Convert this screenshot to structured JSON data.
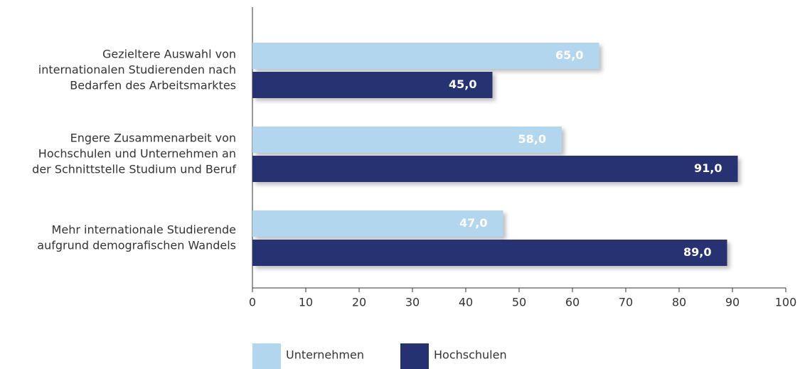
{
  "chart_data": {
    "type": "barh",
    "categories": [
      [
        "Gezieltere Auswahl von",
        "internationalen Studierenden nach",
        "Bedarfen des Arbeitsmarktes"
      ],
      [
        "Engere Zusammenarbeit von",
        "Hochschulen und Unternehmen an",
        "der Schnittstelle Studium und Beruf"
      ],
      [
        "Mehr internationale Studierende",
        "aufgrund demografischen Wandels"
      ]
    ],
    "series": [
      {
        "name": "Unternehmen",
        "color": "#b3d6ef",
        "values": [
          65,
          58,
          47
        ],
        "value_labels": [
          "65,0",
          "58,0",
          "47,0"
        ]
      },
      {
        "name": "Hochschulen",
        "color": "#253271",
        "values": [
          45,
          91,
          89
        ],
        "value_labels": [
          "45,0",
          "91,0",
          "89,0"
        ]
      }
    ],
    "xlim": [
      0,
      100
    ],
    "xticks": [
      0,
      10,
      20,
      30,
      40,
      50,
      60,
      70,
      80,
      90,
      100
    ]
  }
}
